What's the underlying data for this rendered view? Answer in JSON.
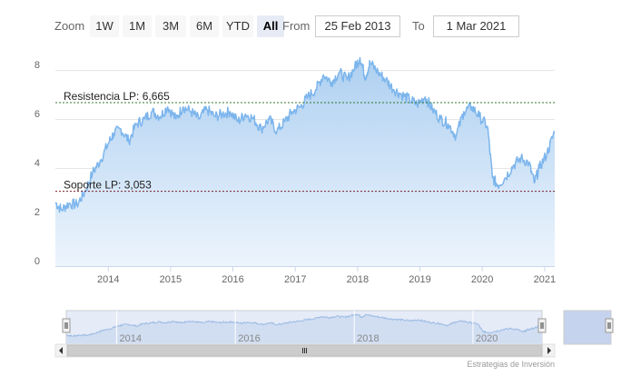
{
  "range_selector": {
    "zoom_label": "Zoom",
    "buttons": [
      "1W",
      "1M",
      "3M",
      "6M",
      "YTD",
      "All"
    ],
    "active": "All",
    "from_label": "From",
    "from_value": "25 Feb 2013",
    "to_label": "To",
    "to_value": "1 Mar 2021"
  },
  "credit": "Estrategias de Inversión",
  "colors": {
    "series_line": "#7cb5ec",
    "area_top": "#a9cdf0",
    "resistance_line": "#2f7a2f",
    "support_line": "#7a1f2b",
    "grid": "#e6e6e6",
    "navigator_mask": "#c6d3ee"
  },
  "chart_data": {
    "type": "area",
    "xlim": [
      "2013-02-25",
      "2021-03-01"
    ],
    "ylim": [
      0,
      9
    ],
    "y_ticks": [
      "0",
      "2",
      "4",
      "6",
      "8"
    ],
    "x_ticks": [
      "2014",
      "2015",
      "2016",
      "2017",
      "2018",
      "2019",
      "2020",
      "2021"
    ],
    "navigator_ticks": [
      "2014",
      "2016",
      "2018",
      "2020"
    ],
    "grid": true,
    "annotations": [
      {
        "label": "Resistencia LP: 6,665",
        "value": 6.665
      },
      {
        "label": "Soporte LP: 3,053",
        "value": 3.053
      }
    ],
    "series": [
      {
        "values": [
          [
            "2013-02-25",
            2.6
          ],
          [
            "2013-04-01",
            2.3
          ],
          [
            "2013-05-15",
            2.55
          ],
          [
            "2013-07-01",
            2.5
          ],
          [
            "2013-08-15",
            3.0
          ],
          [
            "2013-10-01",
            3.8
          ],
          [
            "2013-11-15",
            4.3
          ],
          [
            "2014-01-01",
            5.0
          ],
          [
            "2014-02-01",
            5.4
          ],
          [
            "2014-03-15",
            5.6
          ],
          [
            "2014-05-01",
            5.1
          ],
          [
            "2014-06-15",
            5.8
          ],
          [
            "2014-08-01",
            6.0
          ],
          [
            "2014-09-15",
            6.3
          ],
          [
            "2014-11-01",
            6.1
          ],
          [
            "2014-12-15",
            6.5
          ],
          [
            "2015-02-01",
            6.0
          ],
          [
            "2015-03-15",
            6.5
          ],
          [
            "2015-05-01",
            6.3
          ],
          [
            "2015-06-15",
            6.0
          ],
          [
            "2015-08-01",
            6.4
          ],
          [
            "2015-09-15",
            6.1
          ],
          [
            "2015-11-01",
            6.2
          ],
          [
            "2015-12-15",
            6.3
          ],
          [
            "2016-02-01",
            5.9
          ],
          [
            "2016-03-15",
            6.2
          ],
          [
            "2016-05-01",
            6.0
          ],
          [
            "2016-06-15",
            5.6
          ],
          [
            "2016-08-01",
            6.0
          ],
          [
            "2016-09-15",
            5.5
          ],
          [
            "2016-11-01",
            5.9
          ],
          [
            "2016-12-15",
            6.3
          ],
          [
            "2017-02-01",
            6.5
          ],
          [
            "2017-03-15",
            6.9
          ],
          [
            "2017-05-01",
            7.2
          ],
          [
            "2017-06-15",
            7.8
          ],
          [
            "2017-08-01",
            7.5
          ],
          [
            "2017-09-15",
            7.9
          ],
          [
            "2017-11-01",
            7.6
          ],
          [
            "2017-12-15",
            8.1
          ],
          [
            "2018-01-15",
            8.5
          ],
          [
            "2018-02-15",
            7.7
          ],
          [
            "2018-03-15",
            8.3
          ],
          [
            "2018-05-01",
            7.9
          ],
          [
            "2018-06-15",
            7.6
          ],
          [
            "2018-08-01",
            7.2
          ],
          [
            "2018-09-15",
            7.0
          ],
          [
            "2018-11-01",
            6.8
          ],
          [
            "2018-12-15",
            6.6
          ],
          [
            "2019-02-01",
            6.9
          ],
          [
            "2019-03-15",
            6.4
          ],
          [
            "2019-05-01",
            6.0
          ],
          [
            "2019-06-15",
            5.8
          ],
          [
            "2019-08-01",
            5.3
          ],
          [
            "2019-09-15",
            6.3
          ],
          [
            "2019-11-01",
            6.5
          ],
          [
            "2019-12-15",
            6.1
          ],
          [
            "2020-02-01",
            5.7
          ],
          [
            "2020-03-01",
            3.6
          ],
          [
            "2020-04-01",
            3.3
          ],
          [
            "2020-05-15",
            3.6
          ],
          [
            "2020-07-01",
            4.1
          ],
          [
            "2020-08-15",
            4.4
          ],
          [
            "2020-10-01",
            4.2
          ],
          [
            "2020-11-01",
            3.4
          ],
          [
            "2020-12-01",
            4.0
          ],
          [
            "2021-01-15",
            4.6
          ],
          [
            "2021-03-01",
            5.5
          ]
        ]
      }
    ]
  }
}
